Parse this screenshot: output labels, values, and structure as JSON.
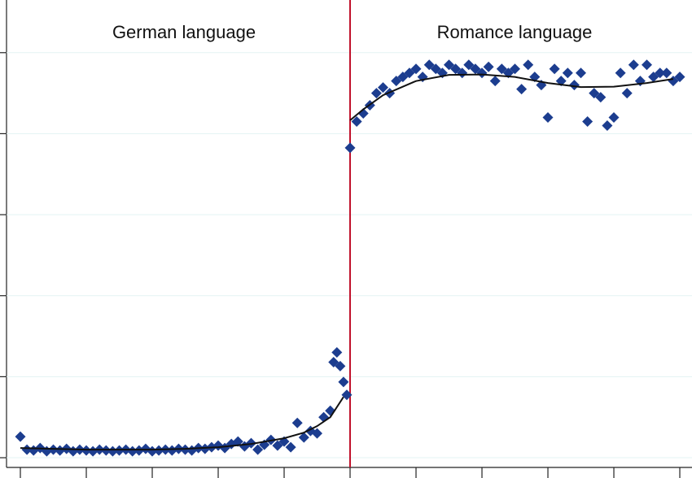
{
  "chart_data": {
    "type": "scatter",
    "annotations": [
      "German language",
      "Romance language"
    ],
    "xlim": [
      -52.1,
      51.85
    ],
    "ylim": [
      -0.024,
      1.13
    ],
    "xticks": [
      -50,
      -40,
      -30,
      -20,
      -10,
      0,
      10,
      20,
      30,
      40,
      50
    ],
    "yticks": [
      0,
      0.2,
      0.4,
      0.6,
      0.8,
      1
    ],
    "grid": true,
    "grid_color": "#e3f3f3",
    "cutoff": 0,
    "cutoff_color": "#c0102a",
    "series": [
      {
        "color": "#1c3d8f",
        "marker": "diamond",
        "x": [
          -50,
          -49,
          -48,
          -47,
          -46,
          -45,
          -44,
          -43,
          -42,
          -41,
          -40,
          -39,
          -38,
          -37,
          -36,
          -35,
          -34,
          -33,
          -32,
          -31,
          -30,
          -29,
          -28,
          -27,
          -26,
          -25,
          -24,
          -23,
          -22,
          -21,
          -20,
          -19,
          -18,
          -17,
          -16,
          -15,
          -14,
          -13,
          -12,
          -11,
          -10,
          -9,
          -8,
          -7,
          -6,
          -5,
          -4,
          -3,
          -2.5,
          -2,
          -1.5,
          -1,
          -0.5
        ],
        "values": [
          0.052,
          0.02,
          0.018,
          0.024,
          0.016,
          0.02,
          0.018,
          0.022,
          0.016,
          0.02,
          0.018,
          0.016,
          0.02,
          0.018,
          0.016,
          0.018,
          0.02,
          0.016,
          0.018,
          0.022,
          0.016,
          0.018,
          0.02,
          0.018,
          0.022,
          0.02,
          0.018,
          0.024,
          0.022,
          0.026,
          0.03,
          0.024,
          0.034,
          0.04,
          0.028,
          0.036,
          0.02,
          0.032,
          0.044,
          0.03,
          0.04,
          0.026,
          0.086,
          0.05,
          0.066,
          0.06,
          0.1,
          0.116,
          0.236,
          0.26,
          0.226,
          0.187,
          0.155
        ]
      },
      {
        "color": "#1c3d8f",
        "marker": "diamond",
        "x": [
          0,
          1,
          2,
          3,
          4,
          5,
          6,
          7,
          8,
          9,
          10,
          11,
          12,
          13,
          14,
          15,
          16,
          17,
          18,
          19,
          20,
          21,
          22,
          23,
          24,
          25,
          26,
          27,
          28,
          29,
          30,
          31,
          32,
          33,
          34,
          35,
          36,
          37,
          38,
          39,
          40,
          41,
          42,
          43,
          44,
          45,
          46,
          47,
          48,
          49,
          50
        ],
        "values": [
          0.765,
          0.83,
          0.85,
          0.87,
          0.9,
          0.914,
          0.9,
          0.93,
          0.94,
          0.95,
          0.96,
          0.94,
          0.97,
          0.96,
          0.95,
          0.97,
          0.96,
          0.95,
          0.97,
          0.96,
          0.95,
          0.965,
          0.93,
          0.96,
          0.95,
          0.96,
          0.91,
          0.97,
          0.94,
          0.92,
          0.84,
          0.96,
          0.93,
          0.95,
          0.92,
          0.95,
          0.83,
          0.9,
          0.89,
          0.82,
          0.84,
          0.95,
          0.9,
          0.97,
          0.93,
          0.97,
          0.94,
          0.95,
          0.95,
          0.93,
          0.94
        ]
      },
      {
        "color": "#111111",
        "marker": "line",
        "x": [
          -50,
          -45,
          -40,
          -35,
          -30,
          -25,
          -20,
          -15,
          -10,
          -7,
          -5,
          -3,
          -1
        ],
        "values": [
          0.024,
          0.022,
          0.02,
          0.02,
          0.02,
          0.022,
          0.026,
          0.034,
          0.048,
          0.062,
          0.078,
          0.1,
          0.15
        ]
      },
      {
        "color": "#111111",
        "marker": "line",
        "x": [
          0,
          2,
          5,
          10,
          15,
          20,
          25,
          30,
          35,
          40,
          45,
          49
        ],
        "values": [
          0.833,
          0.86,
          0.895,
          0.93,
          0.945,
          0.946,
          0.94,
          0.925,
          0.915,
          0.916,
          0.925,
          0.935
        ]
      }
    ]
  }
}
